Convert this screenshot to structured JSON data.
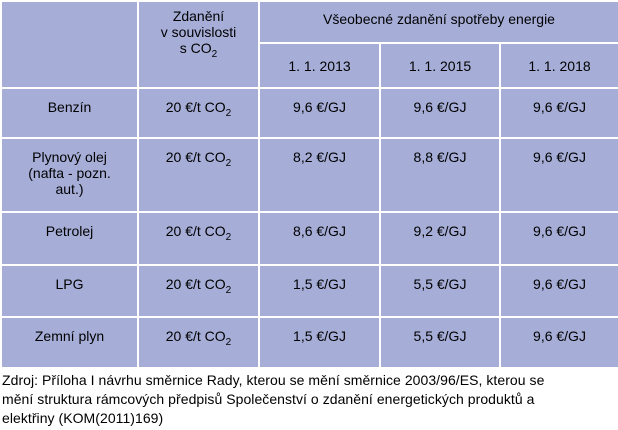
{
  "table": {
    "header": {
      "col0": "",
      "col1_lines": [
        "Zdanění",
        "v souvislosti"
      ],
      "col1_last_prefix": "s CO",
      "col1_last_sub": "2",
      "group_label": "Všeobecné zdanění spotřeby energie",
      "dates": [
        "1. 1. 2013",
        "1. 1. 2015",
        "1. 1. 2018"
      ]
    },
    "co2_prefix": "20 €/t CO",
    "co2_sub": "2",
    "rows": [
      {
        "fuel_lines": [
          "Benzín"
        ],
        "v2013": "9,6 €/GJ",
        "v2015": "9,6 €/GJ",
        "v2018": "9,6 €/GJ"
      },
      {
        "fuel_lines": [
          "Plynový olej",
          "(nafta - pozn.",
          "aut.)"
        ],
        "v2013": "8,2 €/GJ",
        "v2015": "8,8 €/GJ",
        "v2018": "9,6 €/GJ"
      },
      {
        "fuel_lines": [
          "Petrolej"
        ],
        "v2013": "8,6 €/GJ",
        "v2015": "9,2 €/GJ",
        "v2018": "9,6 €/GJ"
      },
      {
        "fuel_lines": [
          "LPG"
        ],
        "v2013": "1,5 €/GJ",
        "v2015": "5,5 €/GJ",
        "v2018": "9,6 €/GJ"
      },
      {
        "fuel_lines": [
          "Zemní plyn"
        ],
        "v2013": "1,5 €/GJ",
        "v2015": "5,5 €/GJ",
        "v2018": "9,6 €/GJ"
      }
    ]
  },
  "source_lines": [
    "Zdroj: Příloha I návrhu směrnice Rady, kterou se mění směrnice 2003/96/ES, kterou se",
    "mění struktura rámcových předpisů Společenství o zdanění energetických produktů a",
    "elektřiny (KOM(2011)169)"
  ]
}
